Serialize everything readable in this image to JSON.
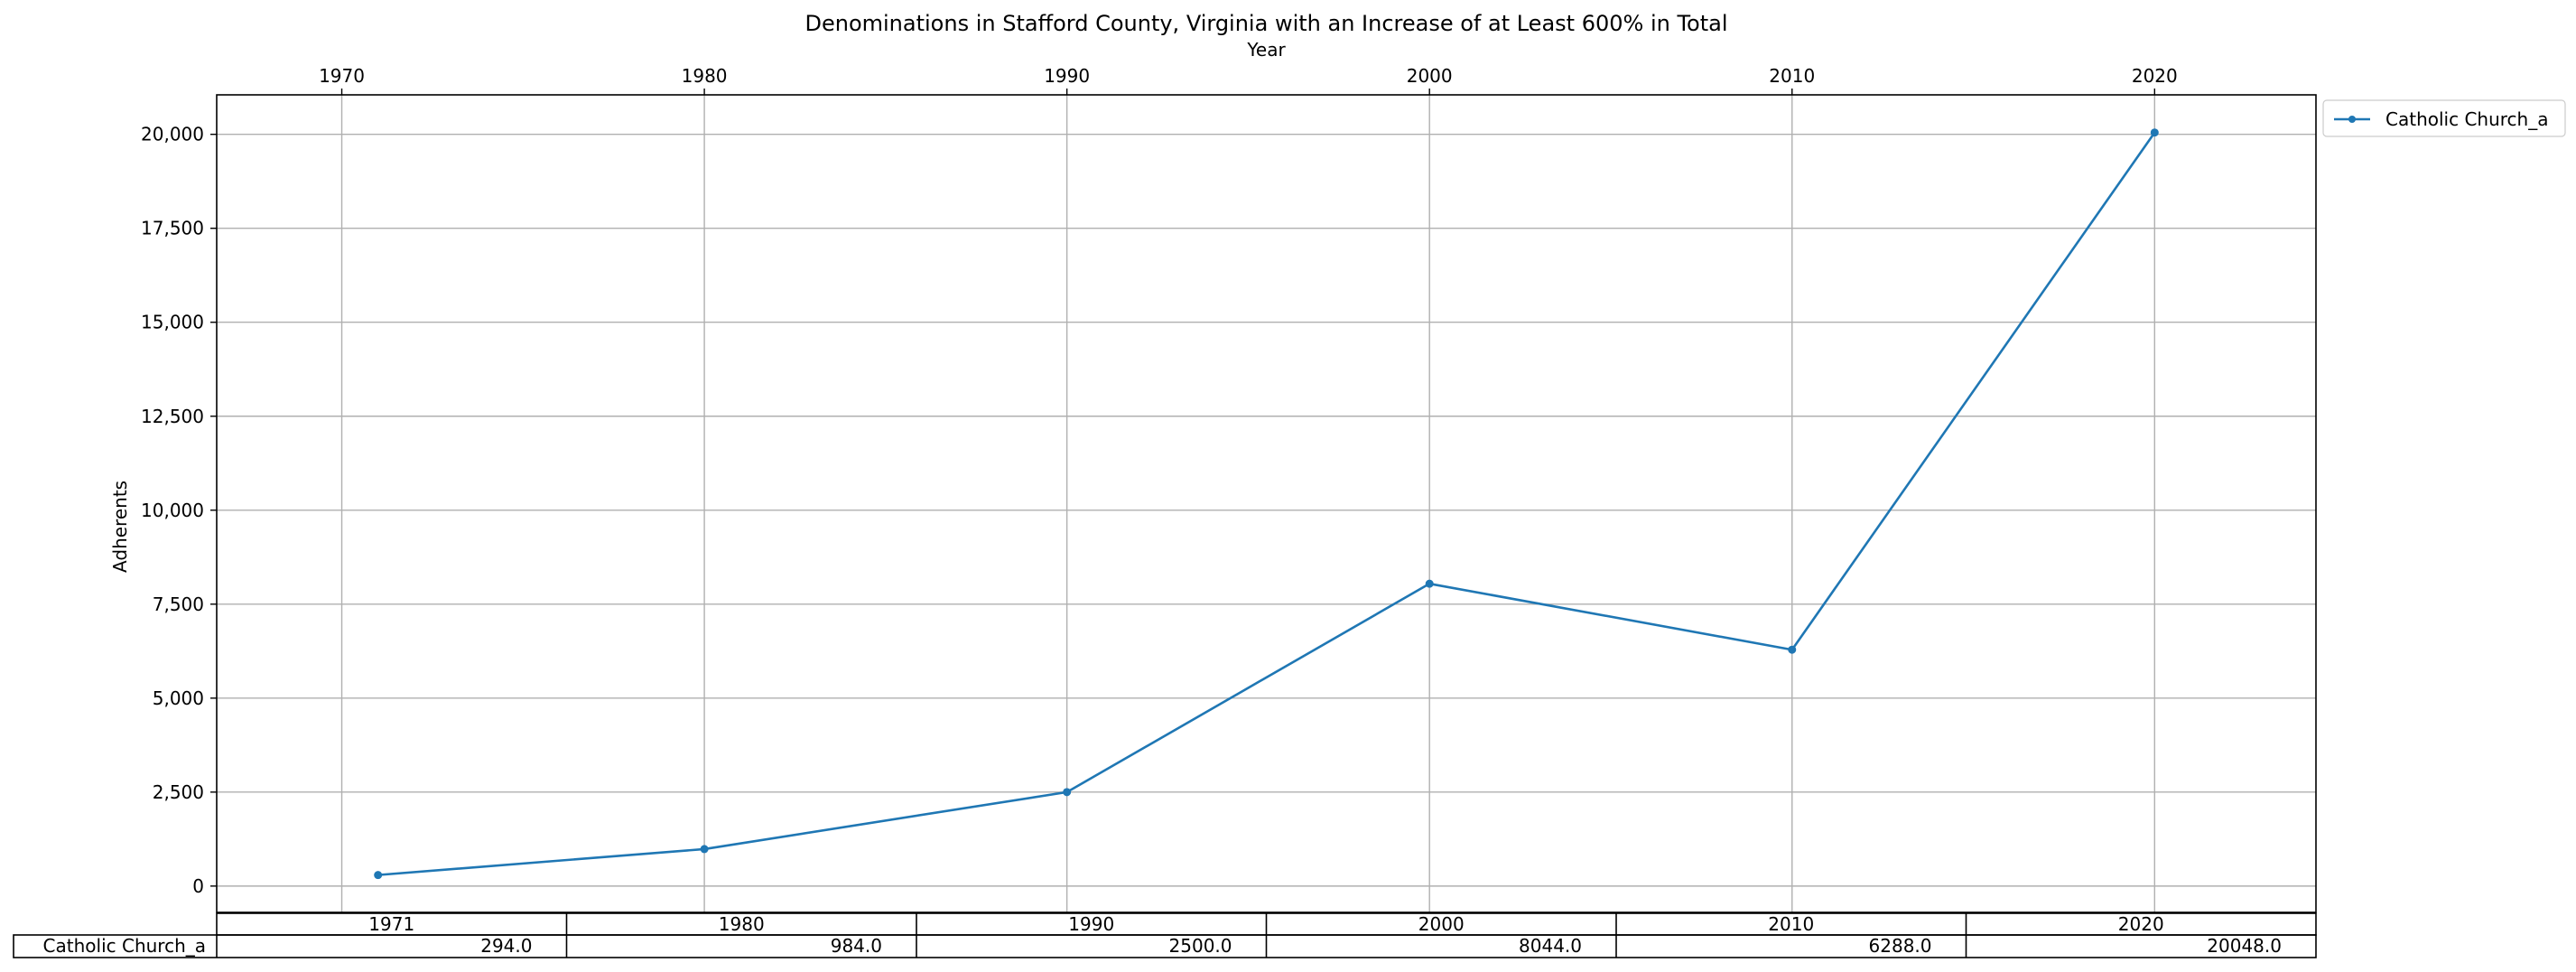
{
  "chart_data": {
    "type": "line",
    "title": "Denominations in Stafford County, Virginia with an Increase of at Least 600% in Total",
    "xlabel": "Year",
    "ylabel": "Adherents",
    "x": [
      1971,
      1980,
      1990,
      2000,
      2010,
      2020
    ],
    "series": [
      {
        "name": "Catholic Church_a",
        "values": [
          294,
          984,
          2500,
          8044,
          6288,
          20048
        ]
      }
    ],
    "xlim": [
      1966.55,
      2024.45
    ],
    "ylim": [
      -700,
      21050
    ],
    "x_ticks": [
      1970,
      1980,
      1990,
      2000,
      2010,
      2020
    ],
    "x_tick_labels": [
      "1970",
      "1980",
      "1990",
      "2000",
      "2010",
      "2020"
    ],
    "y_ticks": [
      0,
      2500,
      5000,
      7500,
      10000,
      12500,
      15000,
      17500,
      20000
    ],
    "y_tick_labels": [
      "0",
      "2,500",
      "5,000",
      "7,500",
      "10,000",
      "12,500",
      "15,000",
      "17,500",
      "20,000"
    ],
    "x_axis_position": "top",
    "grid": true,
    "legend_position": "outside-top-right",
    "series_color": "#1f77b4",
    "table": {
      "col_labels": [
        "1971",
        "1980",
        "1990",
        "2000",
        "2010",
        "2020"
      ],
      "row_label": "Catholic Church_a",
      "cells": [
        "294.0",
        "984.0",
        "2500.0",
        "8044.0",
        "6288.0",
        "20048.0"
      ]
    }
  }
}
